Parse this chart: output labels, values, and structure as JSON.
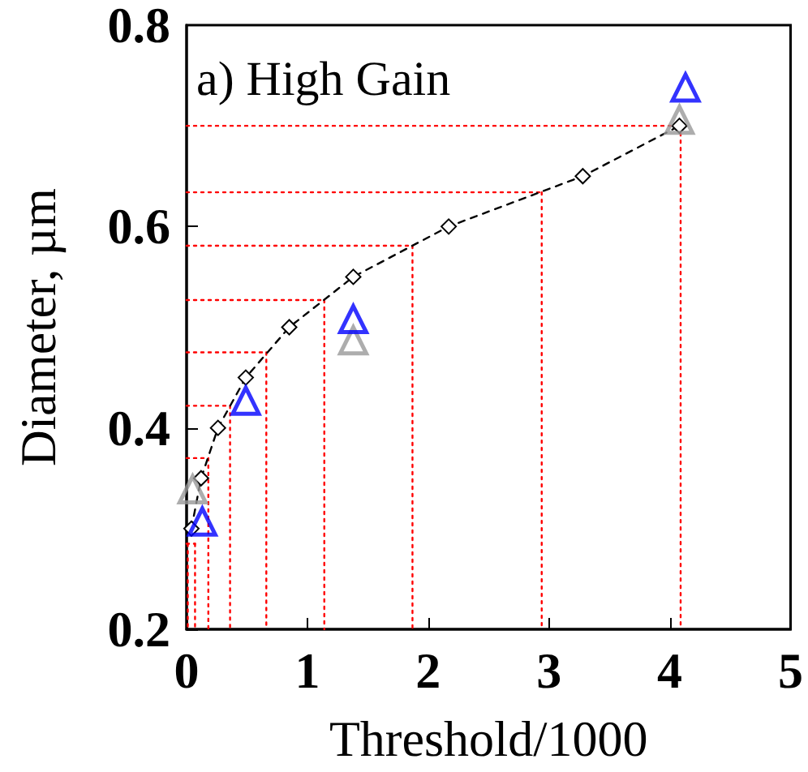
{
  "chart_data": {
    "type": "scatter",
    "xlabel": "Threshold/1000",
    "ylabel": "Diameter, µm",
    "annotations": [
      "a) High Gain"
    ],
    "xlim": [
      0,
      5
    ],
    "xticks": [
      0,
      1,
      2,
      3,
      4,
      5
    ],
    "ylim": [
      0.2,
      0.8
    ],
    "yticks": [
      0.2,
      0.4,
      0.6,
      0.8
    ],
    "grid": false,
    "series": [
      {
        "type": "line",
        "color": "#ff0000",
        "line_style": "dotted",
        "marker": "none",
        "x": [
          0,
          4.09
        ],
        "values": [
          0.7,
          0.7
        ]
      },
      {
        "type": "line",
        "color": "#ff0000",
        "line_style": "dotted",
        "marker": "none",
        "x": [
          4.09,
          4.09
        ],
        "values": [
          0.7,
          0.2
        ]
      },
      {
        "type": "line",
        "color": "#ff0000",
        "line_style": "dotted",
        "marker": "none",
        "x": [
          0,
          2.94
        ],
        "values": [
          0.634,
          0.634
        ]
      },
      {
        "type": "line",
        "color": "#ff0000",
        "line_style": "dotted",
        "marker": "none",
        "x": [
          2.94,
          2.94
        ],
        "values": [
          0.634,
          0.2
        ]
      },
      {
        "type": "line",
        "color": "#ff0000",
        "line_style": "dotted",
        "marker": "none",
        "x": [
          0,
          1.87
        ],
        "values": [
          0.581,
          0.581
        ]
      },
      {
        "type": "line",
        "color": "#ff0000",
        "line_style": "dotted",
        "marker": "none",
        "x": [
          1.87,
          1.87
        ],
        "values": [
          0.581,
          0.2
        ]
      },
      {
        "type": "line",
        "color": "#ff0000",
        "line_style": "dotted",
        "marker": "none",
        "x": [
          0,
          1.14
        ],
        "values": [
          0.527,
          0.527
        ]
      },
      {
        "type": "line",
        "color": "#ff0000",
        "line_style": "dotted",
        "marker": "none",
        "x": [
          1.14,
          1.14
        ],
        "values": [
          0.527,
          0.2
        ]
      },
      {
        "type": "line",
        "color": "#ff0000",
        "line_style": "dotted",
        "marker": "none",
        "x": [
          0,
          0.66
        ],
        "values": [
          0.475,
          0.475
        ]
      },
      {
        "type": "line",
        "color": "#ff0000",
        "line_style": "dotted",
        "marker": "none",
        "x": [
          0.66,
          0.66
        ],
        "values": [
          0.475,
          0.2
        ]
      },
      {
        "type": "line",
        "color": "#ff0000",
        "line_style": "dotted",
        "marker": "none",
        "x": [
          0,
          0.36
        ],
        "values": [
          0.422,
          0.422
        ]
      },
      {
        "type": "line",
        "color": "#ff0000",
        "line_style": "dotted",
        "marker": "none",
        "x": [
          0.36,
          0.36
        ],
        "values": [
          0.422,
          0.2
        ]
      },
      {
        "type": "line",
        "color": "#ff0000",
        "line_style": "dotted",
        "marker": "none",
        "x": [
          0,
          0.18
        ],
        "values": [
          0.37,
          0.37
        ]
      },
      {
        "type": "line",
        "color": "#ff0000",
        "line_style": "dotted",
        "marker": "none",
        "x": [
          0.18,
          0.18
        ],
        "values": [
          0.37,
          0.2
        ]
      },
      {
        "type": "line",
        "color": "#ff0000",
        "line_style": "dotted",
        "marker": "none",
        "x": [
          0,
          0.07
        ],
        "values": [
          0.285,
          0.285
        ]
      },
      {
        "type": "line",
        "color": "#ff0000",
        "line_style": "dotted",
        "marker": "none",
        "x": [
          0.07,
          0.07
        ],
        "values": [
          0.285,
          0.2
        ]
      },
      {
        "type": "line",
        "color": "#ff0000",
        "line_style": "dotted",
        "marker": "none",
        "x": [
          0.01,
          0.01
        ],
        "values": [
          0.285,
          0.2
        ]
      },
      {
        "type": "line",
        "color": "#000000",
        "line_style": "dashed",
        "marker": "diamond",
        "x": [
          0.04,
          0.12,
          0.26,
          0.49,
          0.85,
          1.38,
          2.17,
          3.28,
          4.08
        ],
        "values": [
          0.3,
          0.35,
          0.4,
          0.45,
          0.5,
          0.55,
          0.6,
          0.65,
          0.7
        ]
      },
      {
        "color": "#999999",
        "marker": "triangle",
        "x": [
          0.05,
          1.38,
          4.08
        ],
        "values": [
          0.339,
          0.487,
          0.706
        ]
      },
      {
        "color": "#0000ff",
        "marker": "triangle",
        "x": [
          0.13,
          0.49,
          1.38,
          4.13
        ],
        "values": [
          0.307,
          0.427,
          0.508,
          0.738
        ]
      }
    ]
  }
}
